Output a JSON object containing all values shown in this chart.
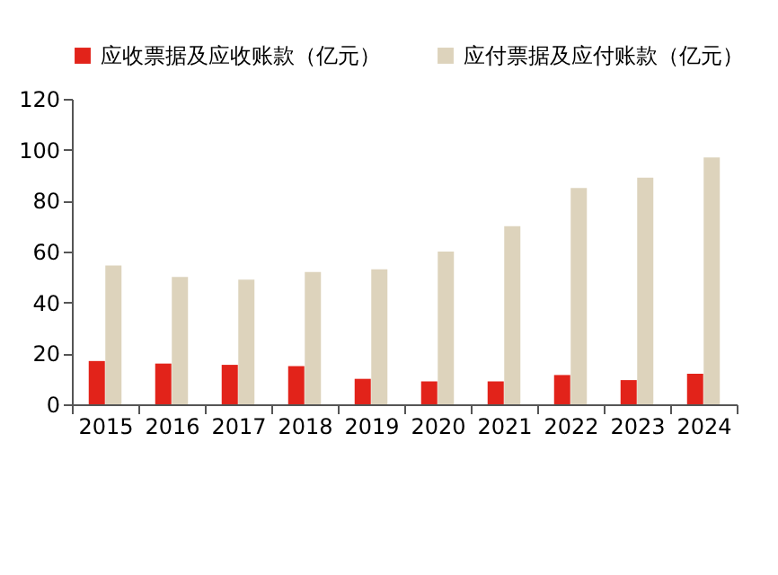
{
  "chart_data": {
    "type": "bar",
    "categories": [
      "2015",
      "2016",
      "2017",
      "2018",
      "2019",
      "2020",
      "2021",
      "2022",
      "2023",
      "2024"
    ],
    "series": [
      {
        "name": "应收票据及应收账款（亿元）",
        "color": "#e2231a",
        "values": [
          17,
          16,
          15.5,
          15,
          10,
          9,
          9,
          11.5,
          9.5,
          12
        ]
      },
      {
        "name": "应付票据及应付账款（亿元）",
        "color": "#ddd3bc",
        "values": [
          54.5,
          50,
          49,
          52,
          53,
          60,
          70,
          85,
          89,
          97
        ]
      }
    ],
    "ylim": [
      0,
      120
    ],
    "yticks": [
      0,
      20,
      40,
      60,
      80,
      100,
      120
    ],
    "grid": false,
    "legend": "top"
  }
}
